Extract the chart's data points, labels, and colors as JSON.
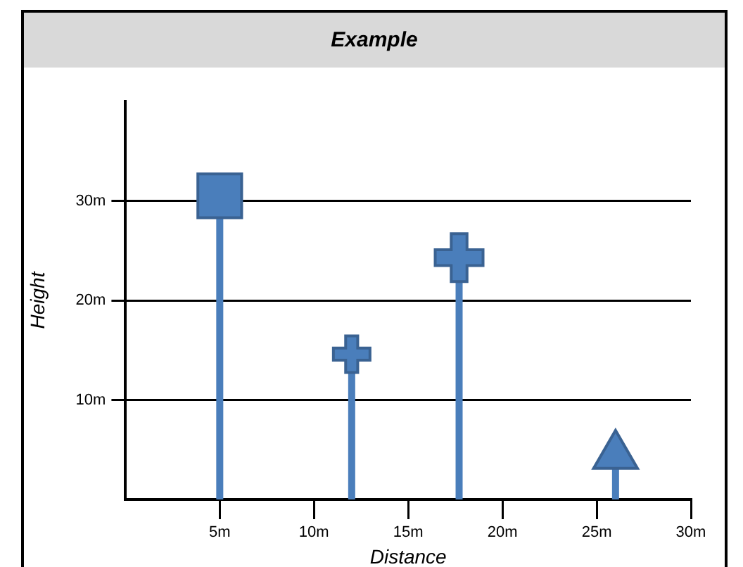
{
  "chart_data": {
    "type": "lollipop",
    "title": "Example",
    "xlabel": "Distance",
    "ylabel": "Height",
    "xlim": [
      0,
      30
    ],
    "xticks": [
      {
        "value": 5,
        "label": "5m"
      },
      {
        "value": 10,
        "label": "10m"
      },
      {
        "value": 15,
        "label": "15m"
      },
      {
        "value": 20,
        "label": "20m"
      },
      {
        "value": 25,
        "label": "25m"
      },
      {
        "value": 30,
        "label": "30m"
      }
    ],
    "ylim": [
      0,
      40
    ],
    "yticks": [
      {
        "value": 10,
        "label": "10m"
      },
      {
        "value": 20,
        "label": "20m"
      },
      {
        "value": 30,
        "label": "30m"
      }
    ],
    "grid": "y",
    "legend": false,
    "series": [
      {
        "marker": "square",
        "color": "#4a7ebb",
        "x": [
          5
        ],
        "values": [
          30.5
        ]
      },
      {
        "marker": "cross",
        "color": "#4a7ebb",
        "x": [
          12,
          17.7
        ],
        "values": [
          14.6,
          24.3
        ]
      },
      {
        "marker": "triangle",
        "color": "#4a7ebb",
        "x": [
          26
        ],
        "values": [
          4.4
        ]
      }
    ]
  }
}
